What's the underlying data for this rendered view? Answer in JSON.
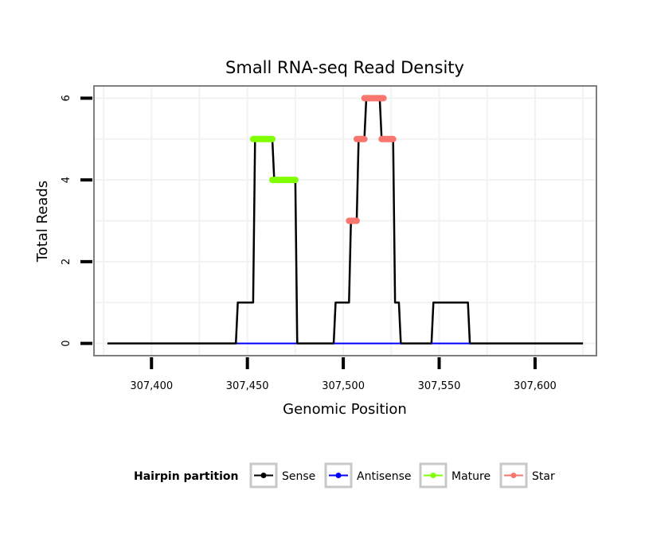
{
  "chart_data": {
    "type": "line",
    "title": "Small RNA-seq Read Density",
    "xlabel": "Genomic Position",
    "ylabel": "Total Reads",
    "xlim": [
      307370,
      307632
    ],
    "ylim": [
      -0.3,
      6.3
    ],
    "x_ticks": [
      307400,
      307450,
      307500,
      307550,
      307600
    ],
    "x_tick_labels": [
      "307,400",
      "307,450",
      "307,500",
      "307,550",
      "307,600"
    ],
    "y_ticks": [
      0,
      2,
      4,
      6
    ],
    "y_tick_labels": [
      "0",
      "2",
      "4",
      "6"
    ],
    "grid": true,
    "legend": {
      "title": "Hairpin partition",
      "placement": "bottom",
      "items": [
        {
          "label": "Sense",
          "color": "#000000"
        },
        {
          "label": "Antisense",
          "color": "#0000ff"
        },
        {
          "label": "Mature",
          "color": "#7fff00"
        },
        {
          "label": "Star",
          "color": "#f8766d"
        }
      ]
    },
    "series": [
      {
        "name": "Sense",
        "color": "#000000",
        "x": [
          307377,
          307444,
          307445,
          307453,
          307454,
          307463,
          307464,
          307475,
          307476,
          307495,
          307496,
          307503,
          307504,
          307507,
          307508,
          307511,
          307512,
          307519,
          307520,
          307526,
          307527,
          307529,
          307530,
          307546,
          307547,
          307565,
          307566,
          307625
        ],
        "y": [
          0,
          0,
          1,
          1,
          5,
          5,
          4,
          4,
          0,
          0,
          1,
          1,
          3,
          3,
          5,
          5,
          6,
          6,
          5,
          5,
          1,
          1,
          0,
          0,
          1,
          1,
          0,
          0
        ]
      },
      {
        "name": "Antisense",
        "color": "#0000ff",
        "x": [
          307444,
          307476,
          307495,
          307530,
          307546,
          307566
        ],
        "y": [
          0,
          0,
          0,
          0,
          0,
          0
        ]
      },
      {
        "name": "Mature",
        "color": "#7fff00",
        "segments": [
          {
            "x": [
              307453,
              307463
            ],
            "y": 5
          },
          {
            "x": [
              307463,
              307475
            ],
            "y": 4
          }
        ]
      },
      {
        "name": "Star",
        "color": "#f8766d",
        "segments": [
          {
            "x": [
              307503,
              307507
            ],
            "y": 3
          },
          {
            "x": [
              307507,
              307511
            ],
            "y": 5
          },
          {
            "x": [
              307511,
              307521
            ],
            "y": 6
          },
          {
            "x": [
              307520,
              307526
            ],
            "y": 5
          }
        ]
      }
    ]
  }
}
